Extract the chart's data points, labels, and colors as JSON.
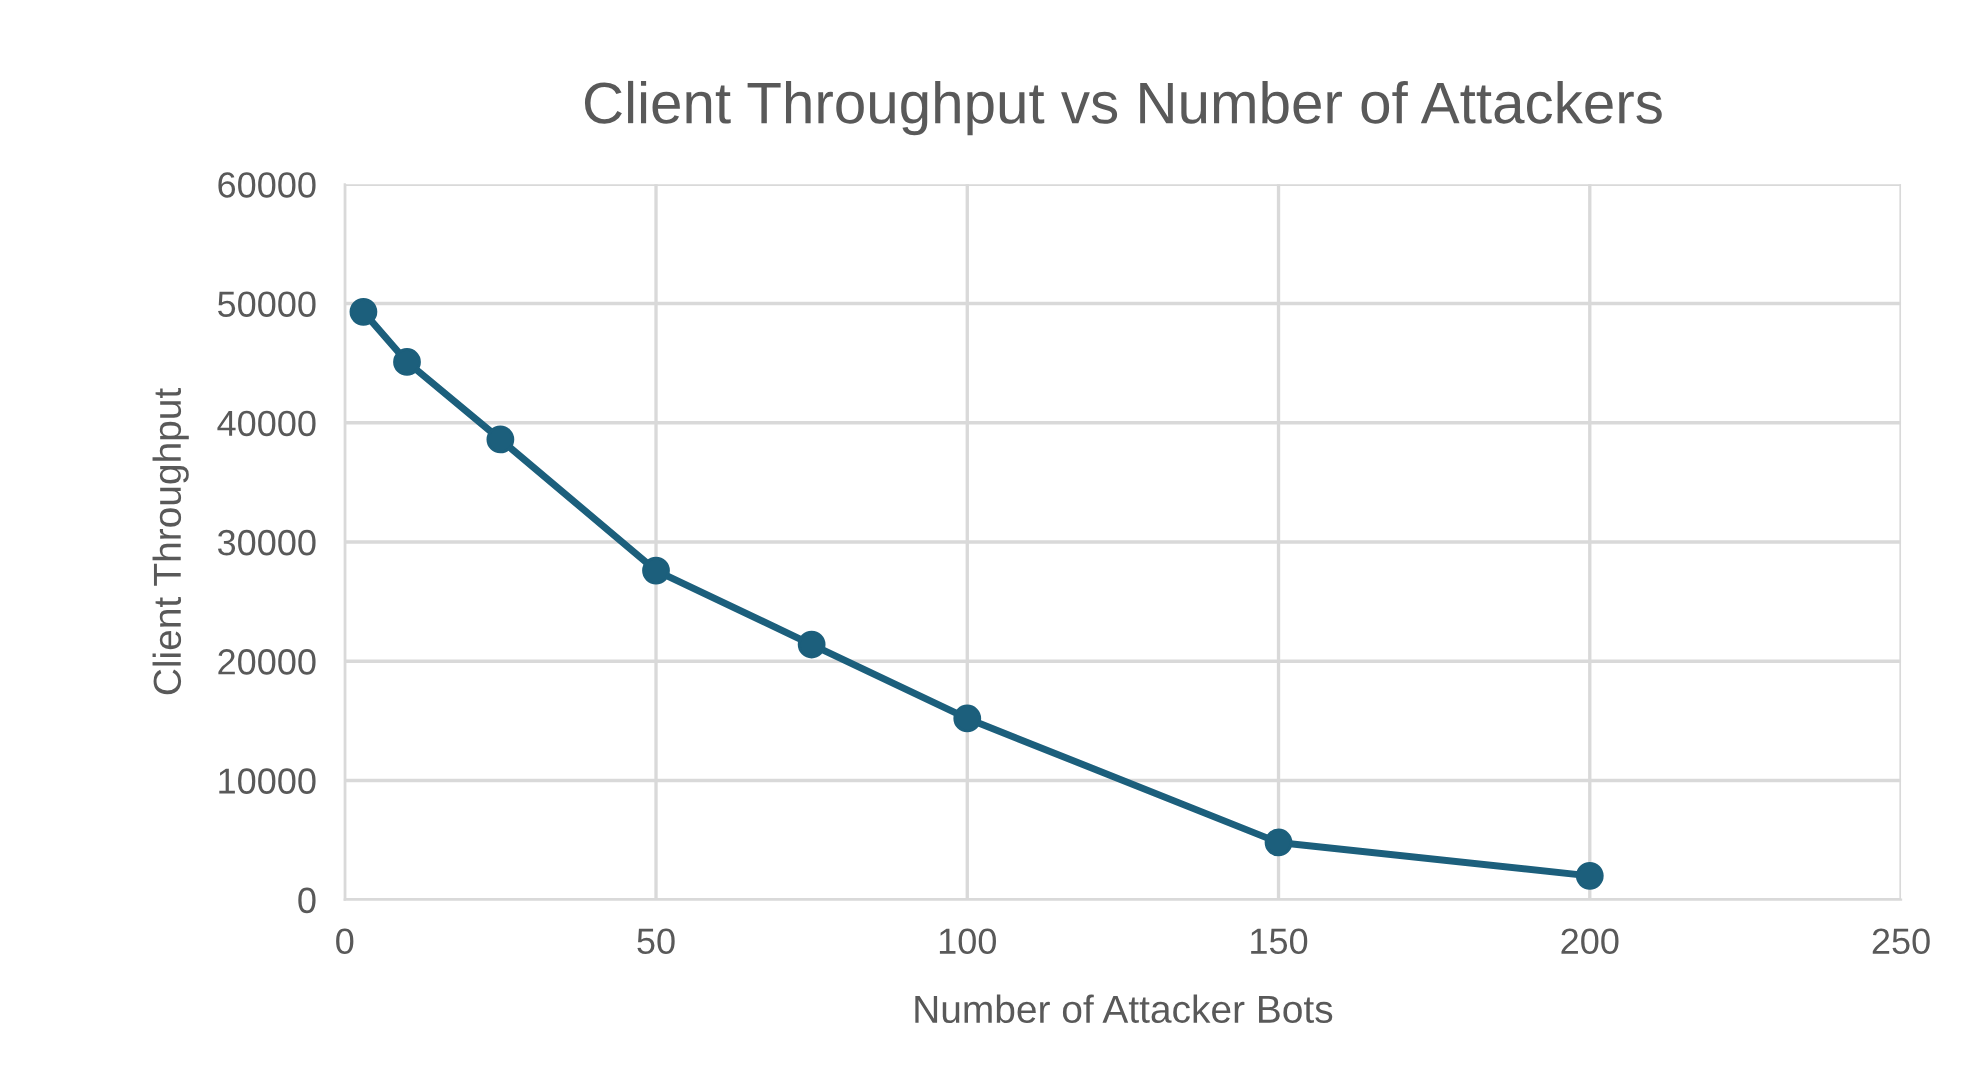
{
  "chart_data": {
    "type": "line",
    "title": "Client Throughput vs Number of Attackers",
    "xlabel": "Number of Attacker Bots",
    "ylabel": "Client Throughput",
    "x": [
      3,
      10,
      25,
      50,
      75,
      100,
      150,
      200
    ],
    "series": [
      {
        "color": "#1c5f7c",
        "values": [
          49300,
          45100,
          38600,
          27600,
          21400,
          15200,
          4800,
          2000
        ]
      }
    ],
    "xlim": [
      0,
      250
    ],
    "xticks": [
      0,
      50,
      100,
      150,
      200,
      250
    ],
    "ylim": [
      0,
      60000
    ],
    "yticks": [
      0,
      10000,
      20000,
      30000,
      40000,
      50000,
      60000
    ],
    "grid": true,
    "marker": "circle",
    "line_style": "solid"
  }
}
